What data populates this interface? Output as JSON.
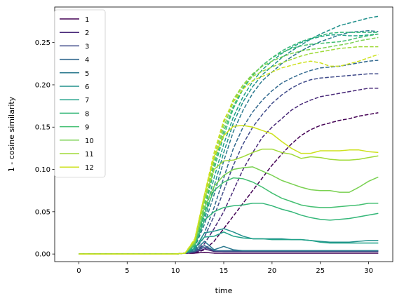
{
  "chart_data": {
    "type": "line",
    "title": "",
    "xlabel": "time",
    "ylabel": "1 - cosine similarity",
    "xlim": [
      -2.5,
      32.5
    ],
    "ylim": [
      -0.009,
      0.292
    ],
    "xticks": [
      0,
      5,
      10,
      15,
      20,
      25,
      30
    ],
    "xtick_labels": [
      "0",
      "5",
      "10",
      "15",
      "20",
      "25",
      "30"
    ],
    "yticks": [
      0.0,
      0.05,
      0.1,
      0.15,
      0.2,
      0.25
    ],
    "ytick_labels": [
      "0.00",
      "0.05",
      "0.10",
      "0.15",
      "0.20",
      "0.25"
    ],
    "grid": false,
    "legend_position": "top-left",
    "line_styles_note_dashed": "dashed",
    "x": [
      0,
      1,
      2,
      3,
      4,
      5,
      6,
      7,
      8,
      9,
      10,
      11,
      12,
      13,
      14,
      15,
      16,
      17,
      18,
      19,
      20,
      21,
      22,
      23,
      24,
      25,
      26,
      27,
      28,
      29,
      30,
      31
    ],
    "series": [
      {
        "name": "1",
        "color": "#440154",
        "solid": [
          0,
          0,
          0,
          0,
          0,
          0,
          0,
          0,
          0,
          0,
          0,
          0.001,
          0.001,
          0.002,
          0.001,
          0.001,
          0.001,
          0.001,
          0.001,
          0.001,
          0.001,
          0.001,
          0.001,
          0.001,
          0.001,
          0.001,
          0.001,
          0.001,
          0.001,
          0.001,
          0.001,
          0.001
        ],
        "dashed": [
          0,
          0,
          0,
          0,
          0,
          0,
          0,
          0,
          0,
          0,
          0,
          0.001,
          0.001,
          0.005,
          0.015,
          0.03,
          0.045,
          0.06,
          0.075,
          0.09,
          0.105,
          0.118,
          0.13,
          0.14,
          0.147,
          0.152,
          0.155,
          0.158,
          0.16,
          0.163,
          0.165,
          0.167
        ]
      },
      {
        "name": "2",
        "color": "#482878",
        "solid": [
          0,
          0,
          0,
          0,
          0,
          0,
          0,
          0,
          0,
          0,
          0,
          0.001,
          0.002,
          0.006,
          0.003,
          0.003,
          0.003,
          0.003,
          0.003,
          0.003,
          0.003,
          0.003,
          0.003,
          0.003,
          0.003,
          0.003,
          0.003,
          0.003,
          0.003,
          0.003,
          0.003,
          0.003
        ],
        "dashed": [
          0,
          0,
          0,
          0,
          0,
          0,
          0,
          0,
          0,
          0,
          0,
          0.001,
          0.003,
          0.012,
          0.03,
          0.05,
          0.075,
          0.1,
          0.12,
          0.138,
          0.15,
          0.16,
          0.17,
          0.177,
          0.182,
          0.186,
          0.188,
          0.19,
          0.192,
          0.194,
          0.196,
          0.196
        ]
      },
      {
        "name": "3",
        "color": "#3e4989",
        "solid": [
          0,
          0,
          0,
          0,
          0,
          0,
          0,
          0,
          0,
          0,
          0,
          0.001,
          0.003,
          0.008,
          0.004,
          0.003,
          0.003,
          0.003,
          0.003,
          0.003,
          0.003,
          0.003,
          0.003,
          0.003,
          0.003,
          0.003,
          0.003,
          0.003,
          0.003,
          0.003,
          0.003,
          0.003
        ],
        "dashed": [
          0,
          0,
          0,
          0,
          0,
          0,
          0,
          0,
          0,
          0,
          0,
          0.001,
          0.005,
          0.02,
          0.045,
          0.075,
          0.105,
          0.13,
          0.15,
          0.165,
          0.178,
          0.188,
          0.196,
          0.202,
          0.206,
          0.208,
          0.209,
          0.21,
          0.211,
          0.212,
          0.213,
          0.213
        ]
      },
      {
        "name": "4",
        "color": "#31688e",
        "solid": [
          0,
          0,
          0,
          0,
          0,
          0,
          0,
          0,
          0,
          0,
          0,
          0.001,
          0.003,
          0.01,
          0.004,
          0.004,
          0.004,
          0.004,
          0.004,
          0.004,
          0.004,
          0.004,
          0.004,
          0.004,
          0.004,
          0.004,
          0.004,
          0.004,
          0.004,
          0.004,
          0.004,
          0.004
        ],
        "dashed": [
          0,
          0,
          0,
          0,
          0,
          0,
          0,
          0,
          0,
          0,
          0,
          0.001,
          0.005,
          0.025,
          0.055,
          0.09,
          0.125,
          0.15,
          0.168,
          0.182,
          0.193,
          0.202,
          0.208,
          0.213,
          0.217,
          0.22,
          0.221,
          0.222,
          0.224,
          0.226,
          0.228,
          0.229
        ]
      },
      {
        "name": "5",
        "color": "#2a788e",
        "solid": [
          0,
          0,
          0,
          0,
          0,
          0,
          0,
          0,
          0,
          0,
          0,
          0.001,
          0.004,
          0.015,
          0.005,
          0.009,
          0.005,
          0.004,
          0.004,
          0.004,
          0.004,
          0.004,
          0.004,
          0.004,
          0.004,
          0.004,
          0.004,
          0.004,
          0.004,
          0.004,
          0.004,
          0.004
        ],
        "dashed": [
          0,
          0,
          0,
          0,
          0,
          0,
          0,
          0,
          0,
          0,
          0,
          0.001,
          0.008,
          0.035,
          0.07,
          0.11,
          0.145,
          0.17,
          0.19,
          0.205,
          0.215,
          0.225,
          0.233,
          0.24,
          0.246,
          0.251,
          0.255,
          0.259,
          0.262,
          0.263,
          0.264,
          0.263
        ]
      },
      {
        "name": "6",
        "color": "#21918c",
        "solid": [
          0,
          0,
          0,
          0,
          0,
          0,
          0,
          0,
          0,
          0,
          0,
          0.001,
          0.006,
          0.025,
          0.027,
          0.03,
          0.026,
          0.021,
          0.018,
          0.018,
          0.018,
          0.018,
          0.017,
          0.017,
          0.016,
          0.015,
          0.014,
          0.014,
          0.014,
          0.015,
          0.016,
          0.016
        ],
        "dashed": [
          0,
          0,
          0,
          0,
          0,
          0,
          0,
          0,
          0,
          0,
          0,
          0.001,
          0.008,
          0.04,
          0.08,
          0.12,
          0.155,
          0.18,
          0.198,
          0.212,
          0.222,
          0.232,
          0.24,
          0.247,
          0.254,
          0.26,
          0.265,
          0.27,
          0.273,
          0.276,
          0.279,
          0.281
        ]
      },
      {
        "name": "7",
        "color": "#1fa188",
        "solid": [
          0,
          0,
          0,
          0,
          0,
          0,
          0,
          0,
          0,
          0,
          0,
          0.001,
          0.007,
          0.02,
          0.021,
          0.026,
          0.021,
          0.019,
          0.018,
          0.018,
          0.017,
          0.017,
          0.017,
          0.017,
          0.016,
          0.014,
          0.013,
          0.013,
          0.013,
          0.013,
          0.013,
          0.013
        ],
        "dashed": [
          0,
          0,
          0,
          0,
          0,
          0,
          0,
          0,
          0,
          0,
          0,
          0.001,
          0.009,
          0.045,
          0.09,
          0.13,
          0.162,
          0.186,
          0.204,
          0.218,
          0.228,
          0.237,
          0.244,
          0.25,
          0.254,
          0.257,
          0.259,
          0.259,
          0.258,
          0.258,
          0.259,
          0.26
        ]
      },
      {
        "name": "8",
        "color": "#35b779",
        "solid": [
          0,
          0,
          0,
          0,
          0,
          0,
          0,
          0,
          0,
          0,
          0,
          0.001,
          0.01,
          0.04,
          0.05,
          0.055,
          0.057,
          0.058,
          0.06,
          0.06,
          0.057,
          0.053,
          0.05,
          0.046,
          0.043,
          0.041,
          0.04,
          0.041,
          0.042,
          0.044,
          0.046,
          0.048
        ],
        "dashed": [
          0,
          0,
          0,
          0,
          0,
          0,
          0,
          0,
          0,
          0,
          0,
          0.001,
          0.011,
          0.05,
          0.1,
          0.14,
          0.172,
          0.195,
          0.211,
          0.223,
          0.232,
          0.24,
          0.246,
          0.251,
          0.255,
          0.258,
          0.261,
          0.262,
          0.262,
          0.262,
          0.262,
          0.262
        ]
      },
      {
        "name": "9",
        "color": "#43bf71",
        "solid": [
          0,
          0,
          0,
          0,
          0,
          0,
          0,
          0,
          0,
          0,
          0,
          0.001,
          0.012,
          0.048,
          0.075,
          0.085,
          0.09,
          0.089,
          0.085,
          0.079,
          0.072,
          0.066,
          0.062,
          0.058,
          0.056,
          0.055,
          0.055,
          0.056,
          0.057,
          0.058,
          0.06,
          0.06
        ],
        "dashed": [
          0,
          0,
          0,
          0,
          0,
          0,
          0,
          0,
          0,
          0,
          0,
          0.001,
          0.012,
          0.055,
          0.105,
          0.145,
          0.175,
          0.197,
          0.212,
          0.223,
          0.232,
          0.238,
          0.243,
          0.246,
          0.248,
          0.249,
          0.25,
          0.251,
          0.253,
          0.256,
          0.258,
          0.26
        ]
      },
      {
        "name": "10",
        "color": "#7ad151",
        "solid": [
          0,
          0,
          0,
          0,
          0,
          0,
          0,
          0,
          0,
          0,
          0,
          0.001,
          0.013,
          0.055,
          0.08,
          0.093,
          0.1,
          0.102,
          0.103,
          0.098,
          0.093,
          0.087,
          0.083,
          0.079,
          0.076,
          0.075,
          0.075,
          0.073,
          0.073,
          0.079,
          0.086,
          0.091
        ],
        "dashed": [
          0,
          0,
          0,
          0,
          0,
          0,
          0,
          0,
          0,
          0,
          0,
          0.001,
          0.014,
          0.06,
          0.11,
          0.15,
          0.18,
          0.2,
          0.213,
          0.222,
          0.228,
          0.233,
          0.237,
          0.24,
          0.242,
          0.243,
          0.245,
          0.247,
          0.249,
          0.252,
          0.254,
          0.256
        ]
      },
      {
        "name": "11",
        "color": "#a0da39",
        "solid": [
          0,
          0,
          0,
          0,
          0,
          0,
          0,
          0,
          0,
          0,
          0,
          0.001,
          0.015,
          0.065,
          0.1,
          0.11,
          0.111,
          0.115,
          0.12,
          0.124,
          0.124,
          0.12,
          0.118,
          0.113,
          0.115,
          0.114,
          0.112,
          0.111,
          0.111,
          0.112,
          0.114,
          0.116
        ],
        "dashed": [
          0,
          0,
          0,
          0,
          0,
          0,
          0,
          0,
          0,
          0,
          0,
          0.001,
          0.016,
          0.065,
          0.115,
          0.155,
          0.183,
          0.2,
          0.21,
          0.216,
          0.221,
          0.226,
          0.23,
          0.234,
          0.237,
          0.239,
          0.241,
          0.243,
          0.244,
          0.245,
          0.245,
          0.245
        ]
      },
      {
        "name": "12",
        "color": "#cde11d",
        "solid": [
          0,
          0,
          0,
          0,
          0,
          0,
          0,
          0,
          0,
          0,
          0,
          0.001,
          0.017,
          0.07,
          0.115,
          0.14,
          0.151,
          0.152,
          0.15,
          0.146,
          0.142,
          0.133,
          0.125,
          0.119,
          0.119,
          0.122,
          0.122,
          0.122,
          0.123,
          0.123,
          0.121,
          0.12
        ],
        "dashed": [
          0,
          0,
          0,
          0,
          0,
          0,
          0,
          0,
          0,
          0,
          0,
          0.001,
          0.018,
          0.07,
          0.12,
          0.158,
          0.18,
          0.195,
          0.205,
          0.21,
          0.215,
          0.22,
          0.223,
          0.226,
          0.228,
          0.226,
          0.222,
          0.222,
          0.225,
          0.228,
          0.232,
          0.236
        ]
      }
    ]
  }
}
